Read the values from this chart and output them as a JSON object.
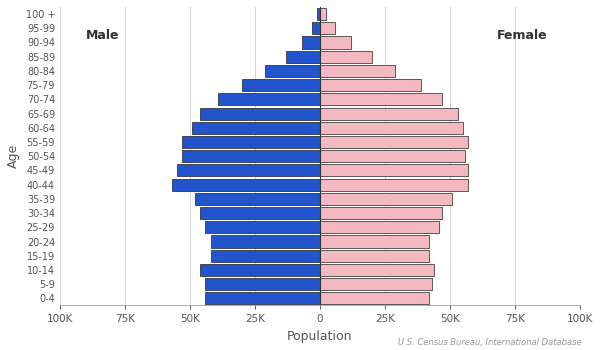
{
  "age_groups": [
    "0-4",
    "5-9",
    "10-14",
    "15-19",
    "20-24",
    "25-29",
    "30-34",
    "35-39",
    "40-44",
    "45-49",
    "50-54",
    "55-59",
    "60-64",
    "65-69",
    "70-74",
    "75-79",
    "80-84",
    "85-89",
    "90-94",
    "95-99",
    "100 +"
  ],
  "male": [
    44000,
    44000,
    46000,
    42000,
    42000,
    44000,
    46000,
    48000,
    57000,
    55000,
    53000,
    53000,
    49000,
    46000,
    39000,
    30000,
    21000,
    13000,
    7000,
    3000,
    1000
  ],
  "female": [
    42000,
    43000,
    44000,
    42000,
    42000,
    46000,
    47000,
    51000,
    57000,
    57000,
    56000,
    57000,
    55000,
    53000,
    47000,
    39000,
    29000,
    20000,
    12000,
    6000,
    2500
  ],
  "male_color": "#2255cc",
  "female_color": "#f4b8c1",
  "bar_edgecolor": "#222222",
  "bar_linewidth": 0.5,
  "xlabel": "Population",
  "ylabel": "Age",
  "male_label": "Male",
  "female_label": "Female",
  "xlim": 100000,
  "xticks": [
    -100000,
    -75000,
    -50000,
    -25000,
    0,
    25000,
    50000,
    75000,
    100000
  ],
  "xticklabels": [
    "100K",
    "75K",
    "50K",
    "25K",
    "0",
    "25K",
    "50K",
    "75K",
    "100K"
  ],
  "source_text": "U.S. Census Bureau, International Database",
  "background_color": "#ffffff",
  "grid_color": "#cccccc"
}
